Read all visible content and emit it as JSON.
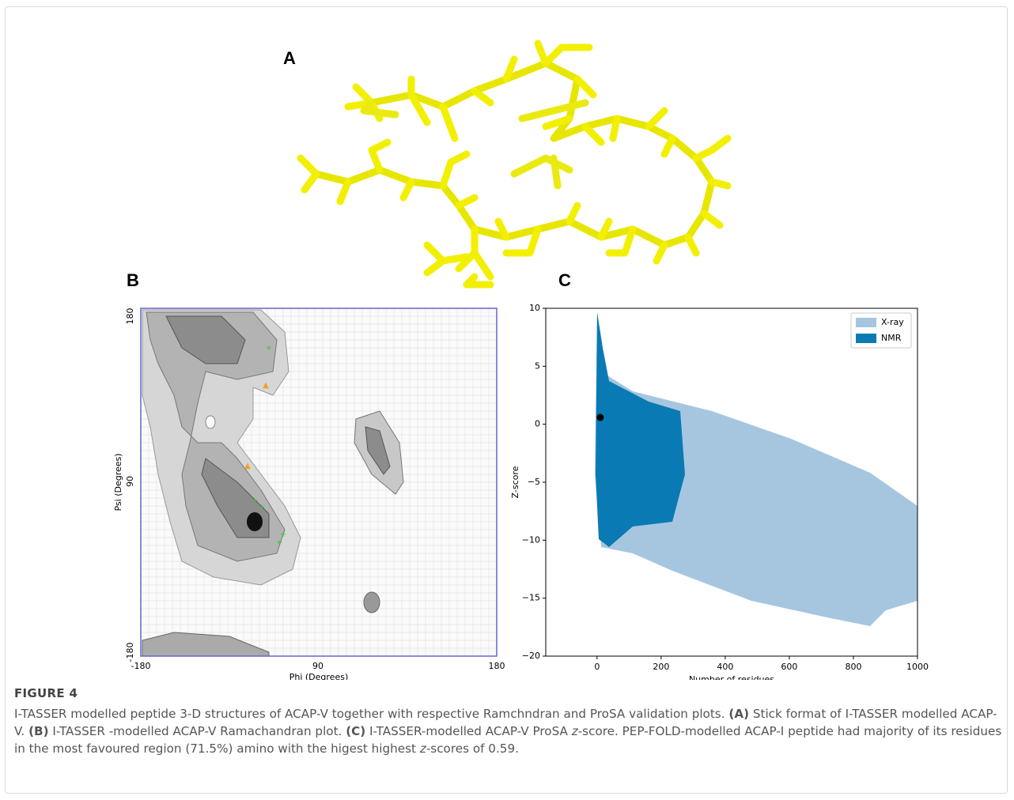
{
  "panel_a": {
    "label": "A"
  },
  "panel_b": {
    "label": "B",
    "x_label": "Phi (Degrees)",
    "y_label": "Psi (Degrees)",
    "x_tick_labels": [
      "-180",
      "90",
      "180"
    ],
    "y_tick_labels": [
      "180",
      "90",
      "-180"
    ]
  },
  "panel_c": {
    "label": "C",
    "type": "scatter",
    "x_label": "Number of residues",
    "y_label": "Z-score",
    "xlim": [
      -160,
      1000
    ],
    "ylim": [
      -20,
      10
    ],
    "xticks": [
      0,
      200,
      400,
      600,
      800,
      1000
    ],
    "yticks": [
      10,
      5,
      0,
      {
        "value": -5,
        "label": "−5"
      },
      {
        "value": -10,
        "label": "−10"
      },
      {
        "value": -15,
        "label": "−15"
      },
      {
        "value": -20,
        "label": "−20"
      }
    ],
    "legend": [
      {
        "name": "X-ray",
        "color": "#a6c6e0"
      },
      {
        "name": "NMR",
        "color": "#0a7ab5"
      }
    ],
    "query_point": {
      "x": 10,
      "y": 0.59
    }
  },
  "caption": {
    "title": "FIGURE 4",
    "parts": [
      "I-TASSER modelled peptide 3-D structures of ACAP-V together with respective Ramchndran and ProSA validation plots. ",
      "(A)",
      " Stick format of I-TASSER modelled ACAP-V. ",
      "(B)",
      " I-TASSER -modelled ACAP-V Ramachandran plot. ",
      "(C)",
      " I-TASSER-modelled ACAP-V ProSA ",
      "z",
      "-score. PEP-FOLD-modelled ACAP-I peptide had majority of its residues in the most favoured region (71.5%) amino with the higest highest ",
      "z",
      "-scores of 0.59."
    ]
  }
}
